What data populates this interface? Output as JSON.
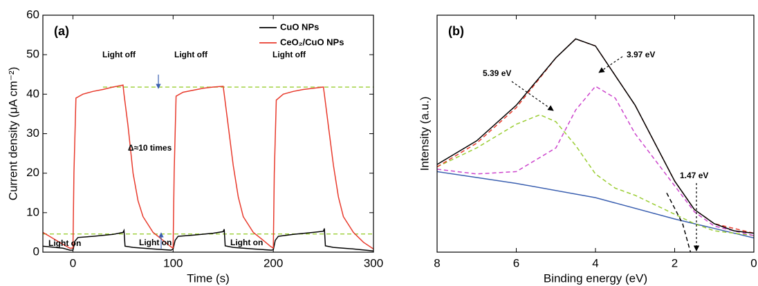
{
  "chart_data": [
    {
      "type": "line",
      "panel_label": "(a)",
      "xlabel": "Time (s)",
      "ylabel": "Current density (μA cm⁻²)",
      "xlim": [
        -30,
        300
      ],
      "xticks": [
        0,
        100,
        200,
        300
      ],
      "ylim": [
        0,
        60
      ],
      "yticks": [
        0,
        10,
        20,
        30,
        40,
        50,
        60
      ],
      "legend": "upper right",
      "series": [
        {
          "name": "CuO NPs",
          "color": "#000000",
          "x": [
            -30,
            -10,
            -3,
            0,
            2,
            5,
            20,
            40,
            50,
            51,
            52,
            60,
            80,
            98,
            100,
            102,
            105,
            120,
            140,
            150,
            151,
            152,
            160,
            180,
            198,
            200,
            202,
            205,
            220,
            240,
            250,
            251,
            252,
            260,
            280,
            300
          ],
          "values": [
            1.5,
            1,
            0.5,
            0.5,
            2.8,
            3.7,
            4,
            4.5,
            5,
            5.5,
            1.5,
            1.2,
            0.8,
            0.5,
            0.8,
            3,
            4,
            4.3,
            4.8,
            5.2,
            5.8,
            1.6,
            1.2,
            0.8,
            0.5,
            0.6,
            3,
            4,
            4.5,
            5,
            5.3,
            6,
            1.6,
            1.2,
            0.8,
            0.3
          ]
        },
        {
          "name": "CeO₂/CuO NPs",
          "color": "#e8392b",
          "x": [
            -30,
            -20,
            -10,
            -3,
            0,
            1,
            3,
            10,
            20,
            30,
            40,
            50,
            51,
            55,
            60,
            65,
            70,
            80,
            90,
            97,
            100,
            101,
            103,
            110,
            120,
            130,
            140,
            150,
            151,
            155,
            160,
            165,
            170,
            180,
            190,
            197,
            200,
            201,
            203,
            210,
            220,
            230,
            240,
            250,
            251,
            255,
            260,
            265,
            270,
            280,
            290,
            300
          ],
          "values": [
            5,
            3.5,
            2,
            1,
            1,
            20,
            39,
            40,
            40.7,
            41.2,
            41.8,
            42.3,
            40,
            32,
            20,
            13,
            9,
            5,
            3,
            1.5,
            1,
            20,
            39.5,
            40.5,
            41,
            41.5,
            41.8,
            42,
            40,
            32,
            22,
            14,
            9,
            5,
            3,
            1.5,
            1,
            20,
            38.5,
            40,
            40.7,
            41.2,
            41.5,
            41.8,
            40,
            32,
            22,
            14,
            9,
            5,
            2.5,
            0.8
          ]
        }
      ],
      "reference_lines": [
        {
          "value": 41.8,
          "color": "#9acd32"
        },
        {
          "value": 4.6,
          "color": "#9acd32"
        }
      ],
      "annotations": [
        "Light off",
        "Light off",
        "Light off",
        "Light on",
        "Light on",
        "Light on",
        "Δ≈10 times"
      ]
    },
    {
      "type": "line",
      "panel_label": "(b)",
      "xlabel": "Binding energy (eV)",
      "ylabel": "Intensity (a.u.)",
      "xlim": [
        8,
        0
      ],
      "xticks": [
        8,
        6,
        4,
        2,
        0
      ],
      "ylim": [
        0,
        100
      ],
      "series": [
        {
          "color": "#3a5fb0",
          "x": [
            8,
            6,
            4,
            2,
            1,
            0
          ],
          "values": [
            34,
            29,
            23,
            14,
            10,
            6
          ]
        },
        {
          "color": "#9acd32",
          "dashed": true,
          "x": [
            8,
            7,
            6,
            5.4,
            5,
            4.5,
            4,
            3.5,
            3,
            2,
            1.5,
            1,
            0
          ],
          "values": [
            36,
            44,
            54,
            58,
            55,
            45,
            33,
            27,
            24,
            16,
            12,
            9,
            7
          ]
        },
        {
          "color": "#cc44cc",
          "dashed": true,
          "x": [
            8,
            7,
            6,
            5,
            4.5,
            4,
            3.5,
            3,
            2,
            1.5,
            1,
            0
          ],
          "values": [
            35,
            33,
            34,
            44,
            60,
            70,
            65,
            50,
            28,
            17,
            11,
            7
          ]
        },
        {
          "color": "#e8392b",
          "dashed": true,
          "x": [
            8,
            7,
            6,
            5,
            4.5,
            4,
            3,
            2,
            1.5,
            1,
            0
          ],
          "values": [
            36,
            46,
            61,
            82,
            90,
            87,
            62,
            30,
            18,
            12,
            8
          ]
        },
        {
          "color": "#000000",
          "x": [
            8,
            7,
            6,
            5,
            4.5,
            4,
            3,
            2,
            1.5,
            1,
            0.5,
            0
          ],
          "values": [
            37,
            47,
            62,
            82,
            90,
            87,
            62,
            30,
            18,
            12,
            9,
            8
          ]
        },
        {
          "color": "#000000",
          "dashed": true,
          "x": [
            2.2,
            1.8,
            1.6
          ],
          "values": [
            25,
            12,
            0
          ]
        }
      ],
      "annotations": [
        "5.39 eV",
        "3.97 eV",
        "1.47 eV"
      ]
    }
  ]
}
